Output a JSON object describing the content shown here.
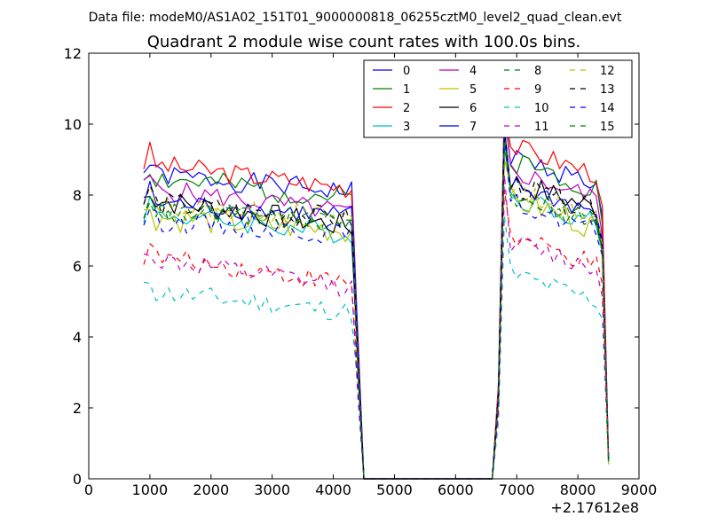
{
  "chart_data": {
    "type": "line",
    "suptitle": "Data file: modeM0/AS1A02_151T01_9000000818_06255cztM0_level2_quad_clean.evt",
    "title": "Quadrant 2 module wise count rates with 100.0s bins.",
    "xlabel": "",
    "ylabel": "",
    "x_offset_label": "+2.17612e8",
    "xlim": [
      0,
      9000
    ],
    "ylim": [
      0,
      12
    ],
    "xticks": [
      0,
      1000,
      2000,
      3000,
      4000,
      5000,
      6000,
      7000,
      8000,
      9000
    ],
    "yticks": [
      0,
      2,
      4,
      6,
      8,
      10,
      12
    ],
    "x_tick_labels": [
      "0",
      "1000",
      "2000",
      "3000",
      "4000",
      "5000",
      "6000",
      "7000",
      "8000",
      "9000"
    ],
    "y_tick_labels": [
      "0",
      "2",
      "4",
      "6",
      "8",
      "10",
      "12"
    ],
    "grid": false,
    "legend_position": "top-right",
    "segments": [
      {
        "start": 900,
        "end": 4300,
        "step": 100
      },
      {
        "start": 6700,
        "end": 8500,
        "step": 100
      }
    ],
    "gap": {
      "x": [
        4400,
        4500,
        4600,
        6500,
        6600
      ],
      "y": [
        4.0,
        0.0,
        0.0,
        0.0,
        0.0
      ]
    },
    "series": [
      {
        "name": "0",
        "color": "#0000ff",
        "dash": "solid",
        "level": 8.6,
        "trend": -0.5,
        "amp": 0.3,
        "seed": 1
      },
      {
        "name": "1",
        "color": "#008000",
        "dash": "solid",
        "level": 8.5,
        "trend": -0.6,
        "amp": 0.35,
        "seed": 2
      },
      {
        "name": "2",
        "color": "#ff0000",
        "dash": "solid",
        "level": 8.9,
        "trend": -0.7,
        "amp": 0.3,
        "seed": 3
      },
      {
        "name": "3",
        "color": "#00bfbf",
        "dash": "solid",
        "level": 7.5,
        "trend": -0.6,
        "amp": 0.3,
        "seed": 4
      },
      {
        "name": "4",
        "color": "#bf00bf",
        "dash": "solid",
        "level": 8.2,
        "trend": -0.7,
        "amp": 0.3,
        "seed": 5
      },
      {
        "name": "5",
        "color": "#bfbf00",
        "dash": "solid",
        "level": 7.4,
        "trend": -0.4,
        "amp": 0.4,
        "seed": 6
      },
      {
        "name": "6",
        "color": "#000000",
        "dash": "solid",
        "level": 7.9,
        "trend": -0.8,
        "amp": 0.35,
        "seed": 7
      },
      {
        "name": "7",
        "color": "#0000ff",
        "dash": "solid",
        "level": 7.8,
        "trend": -0.4,
        "amp": 0.3,
        "seed": 8
      },
      {
        "name": "8",
        "color": "#008000",
        "dash": "dashed",
        "level": 7.5,
        "trend": -0.2,
        "amp": 0.3,
        "seed": 9
      },
      {
        "name": "9",
        "color": "#ff0000",
        "dash": "dashed",
        "level": 6.3,
        "trend": -0.8,
        "amp": 0.3,
        "seed": 10
      },
      {
        "name": "10",
        "color": "#00bfbf",
        "dash": "dashed",
        "level": 5.3,
        "trend": -0.6,
        "amp": 0.3,
        "seed": 11
      },
      {
        "name": "11",
        "color": "#bf00bf",
        "dash": "dashed",
        "level": 6.2,
        "trend": -0.8,
        "amp": 0.3,
        "seed": 12
      },
      {
        "name": "12",
        "color": "#bfbf00",
        "dash": "dashed",
        "level": 7.7,
        "trend": -0.3,
        "amp": 0.3,
        "seed": 13
      },
      {
        "name": "13",
        "color": "#000000",
        "dash": "dashed",
        "level": 7.8,
        "trend": -0.5,
        "amp": 0.35,
        "seed": 14
      },
      {
        "name": "14",
        "color": "#0000ff",
        "dash": "dashed",
        "level": 7.3,
        "trend": -0.4,
        "amp": 0.3,
        "seed": 15
      },
      {
        "name": "15",
        "color": "#008000",
        "dash": "dashed",
        "level": 7.6,
        "trend": -0.4,
        "amp": 0.3,
        "seed": 16
      }
    ]
  }
}
